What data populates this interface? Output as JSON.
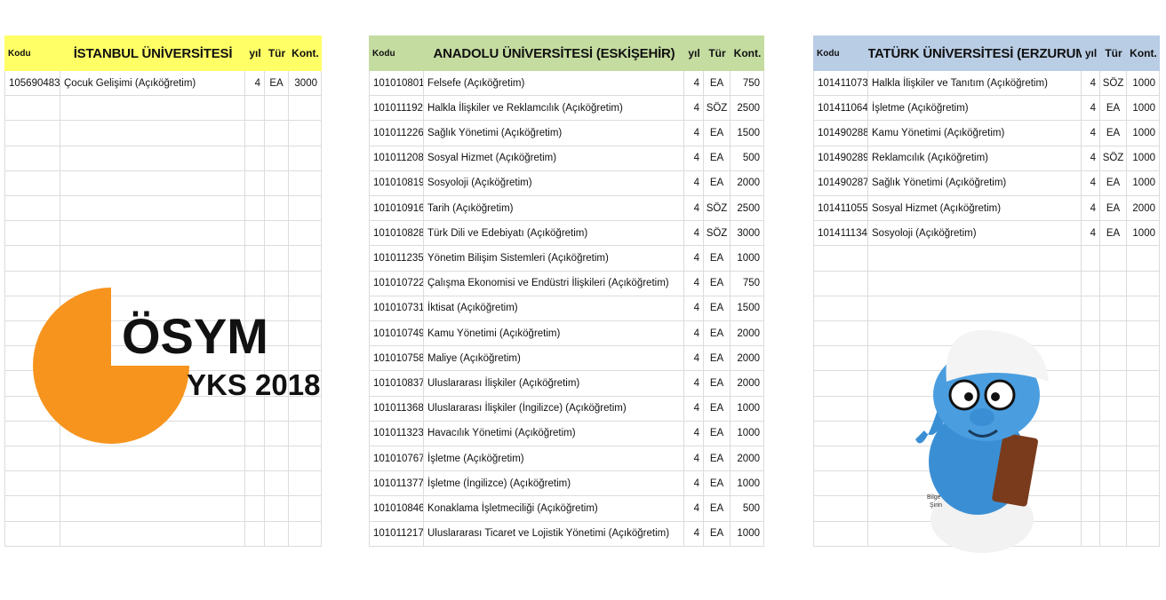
{
  "tables": [
    {
      "headers": [
        "Kodu",
        "İSTANBUL ÜNİVERSİTESİ",
        "yıl",
        "Tür",
        "Kont."
      ],
      "rows": [
        [
          105690483,
          "Çocuk Gelişimi (Açıköğretim)",
          4,
          "EA",
          3000
        ]
      ]
    },
    {
      "headers": [
        "Kodu",
        "ANADOLU ÜNİVERSİTESİ (ESKİŞEHİR)",
        "yıl",
        "Tür",
        "Kont."
      ],
      "rows": [
        [
          101010801,
          "Felsefe (Açıköğretim)",
          4,
          "EA",
          750
        ],
        [
          101011192,
          "Halkla İlişkiler ve Reklamcılık (Açıköğretim)",
          4,
          "SÖZ",
          2500
        ],
        [
          101011226,
          "Sağlık Yönetimi (Açıköğretim)",
          4,
          "EA",
          1500
        ],
        [
          101011208,
          "Sosyal Hizmet (Açıköğretim)",
          4,
          "EA",
          500
        ],
        [
          101010819,
          "Sosyoloji (Açıköğretim)",
          4,
          "EA",
          2000
        ],
        [
          101010916,
          "Tarih (Açıköğretim)",
          4,
          "SÖZ",
          2500
        ],
        [
          101010828,
          "Türk Dili ve Edebiyatı (Açıköğretim)",
          4,
          "SÖZ",
          3000
        ],
        [
          101011235,
          "Yönetim Bilişim Sistemleri (Açıköğretim)",
          4,
          "EA",
          1000
        ],
        [
          101010722,
          "Çalışma Ekonomisi ve Endüstri İlişkileri (Açıköğretim)",
          4,
          "EA",
          750
        ],
        [
          101010731,
          "İktisat (Açıköğretim)",
          4,
          "EA",
          1500
        ],
        [
          101010749,
          "Kamu Yönetimi (Açıköğretim)",
          4,
          "EA",
          2000
        ],
        [
          101010758,
          "Maliye (Açıköğretim)",
          4,
          "EA",
          2000
        ],
        [
          101010837,
          "Uluslararası İlişkiler (Açıköğretim)",
          4,
          "EA",
          2000
        ],
        [
          101011368,
          "Uluslararası İlişkiler (İngilizce) (Açıköğretim)",
          4,
          "EA",
          1000
        ],
        [
          101011323,
          "Havacılık Yönetimi (Açıköğretim)",
          4,
          "EA",
          1000
        ],
        [
          101010767,
          "İşletme (Açıköğretim)",
          4,
          "EA",
          2000
        ],
        [
          101011377,
          "İşletme (İngilizce) (Açıköğretim)",
          4,
          "EA",
          1000
        ],
        [
          101010846,
          "Konaklama İşletmeciliği (Açıköğretim)",
          4,
          "EA",
          500
        ],
        [
          101011217,
          "Uluslararası Ticaret ve Lojistik Yönetimi (Açıköğretim)",
          4,
          "EA",
          1000
        ]
      ]
    },
    {
      "headers": [
        "Kodu",
        "ATATÜRK ÜNİVERSİTESİ (ERZURUM)",
        "yıl",
        "Tür",
        "Kont."
      ],
      "rows": [
        [
          101411073,
          "Halkla İlişkiler ve Tanıtım (Açıköğretim)",
          4,
          "SÖZ",
          1000
        ],
        [
          101411064,
          "İşletme (Açıköğretim)",
          4,
          "EA",
          1000
        ],
        [
          101490288,
          "Kamu Yönetimi (Açıköğretim)",
          4,
          "EA",
          1000
        ],
        [
          101490289,
          "Reklamcılık (Açıköğretim)",
          4,
          "SÖZ",
          1000
        ],
        [
          101490287,
          "Sağlık Yönetimi (Açıköğretim)",
          4,
          "EA",
          1000
        ],
        [
          101411055,
          "Sosyal Hizmet (Açıköğretim)",
          4,
          "EA",
          2000
        ],
        [
          101411134,
          "Sosyoloji (Açıköğretim)",
          4,
          "EA",
          1000
        ]
      ]
    }
  ],
  "logo": {
    "name": "ÖSYM",
    "subtitle": "YKS 2018"
  },
  "mascot_label": [
    "Bilge",
    "Şirin"
  ]
}
